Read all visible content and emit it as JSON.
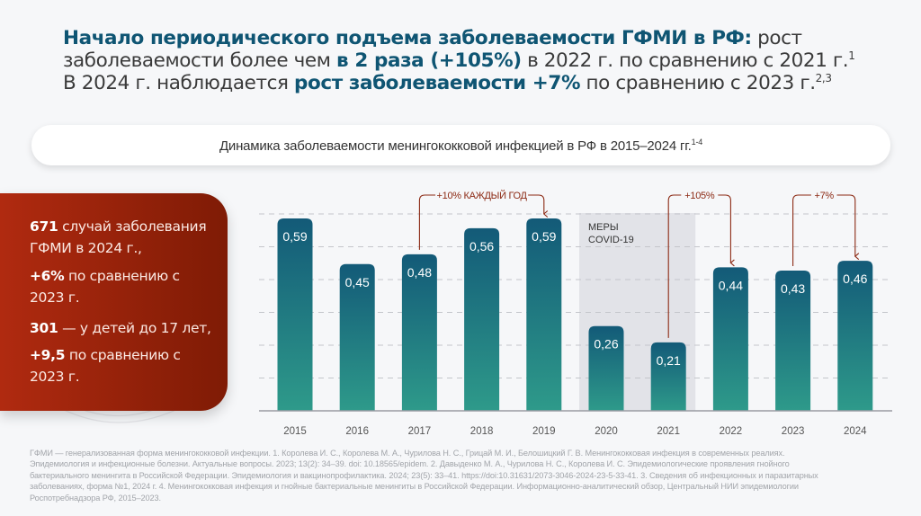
{
  "header": {
    "line1_highlight": "Начало периодического подъема заболеваемости ГФМИ в РФ:",
    "line1_rest": " рост",
    "line2_a": "заболеваемости более чем ",
    "line2_highlight": "в 2 раза (+105%)",
    "line2_b": " в 2022 г. по сравнению с 2021 г.",
    "line2_sup": "1",
    "line3_a": "В 2024 г. наблюдается ",
    "line3_highlight": "рост заболеваемости +7%",
    "line3_b": " по сравнению с 2023 г.",
    "line3_sup": "2,3"
  },
  "subtitle": {
    "text": "Динамика заболеваемости менингококковой инфекцией в РФ в 2015–2024 гг.",
    "sup": "1-4"
  },
  "summary": [
    {
      "bold": "671",
      "text": " случай заболевания",
      "text2": "ГФМИ в 2024 г.,"
    },
    {
      "bold": "+6%",
      "text": " по сравнению с",
      "text2": "2023 г."
    },
    {
      "bold": "301",
      "text": " — у детей до 17 лет,",
      "text2": ""
    },
    {
      "bold": "+9,5",
      "text": " по сравнению с",
      "text2": "2023 г."
    }
  ],
  "colors": {
    "accent": "#0f5573",
    "bar_top": "#135a78",
    "bar_bottom": "#2e9a8a",
    "annotation": "#8c2a14",
    "covid_band": "#e2e3e8",
    "red_box": "#a32510"
  },
  "chart_data": {
    "type": "bar",
    "title": "Динамика заболеваемости менингококковой инфекцией в РФ в 2015–2024 гг.",
    "categories": [
      "2015",
      "2016",
      "2017",
      "2018",
      "2019",
      "2020",
      "2021",
      "2022",
      "2023",
      "2024"
    ],
    "values": [
      0.59,
      0.45,
      0.48,
      0.56,
      0.59,
      0.26,
      0.21,
      0.44,
      0.43,
      0.46
    ],
    "value_labels": [
      "0,59",
      "0,45",
      "0,48",
      "0,56",
      "0,59",
      "0,26",
      "0,21",
      "0,44",
      "0,43",
      "0,46"
    ],
    "ylim": [
      0,
      0.6
    ],
    "grid": true,
    "xlabel": "",
    "ylabel": "",
    "shaded_region": {
      "from": "2020",
      "to": "2021",
      "label_line1": "МЕРЫ",
      "label_line2": "COVID-19"
    },
    "annotations": [
      {
        "from": "2017",
        "to": "2019",
        "text": "+10% КАЖДЫЙ ГОД"
      },
      {
        "from": "2021",
        "to": "2022",
        "text": "+105%"
      },
      {
        "from": "2023",
        "to": "2024",
        "text": "+7%"
      }
    ]
  },
  "footnote": [
    "ГФМИ — генерализованная форма менингококковой инфекции. 1. Королева И. С., Королева М. А., Чурилова Н. С., Грицай М. И., Белошицкий Г. В. Менингококковая инфекция в современных реалиях.",
    "Эпидемиология и инфекционные болезни. Актуальные вопросы. 2023; 13(2): 34–39. doi: 10.18565/epidem. 2. Давыденко М. А., Чурилова Н. С., Королева И. С. Эпидемиологические проявления гнойного",
    "бактериального менингита в Российской Федерации. Эпидемиология и вакцинопрофилактика. 2024; 23(5): 33–41. https://doi:10.31631/2073-3046-2024-23-5-33-41. 3. Сведения об инфекционных и паразитарных",
    "заболеваниях, форма №1, 2024 г. 4. Менингококковая инфекция и гнойные бактериальные менингиты в Российской Федерации. Информационно-аналитический обзор, Центральный НИИ эпидемиологии",
    "Роспотребнадзора РФ, 2015–2023."
  ]
}
